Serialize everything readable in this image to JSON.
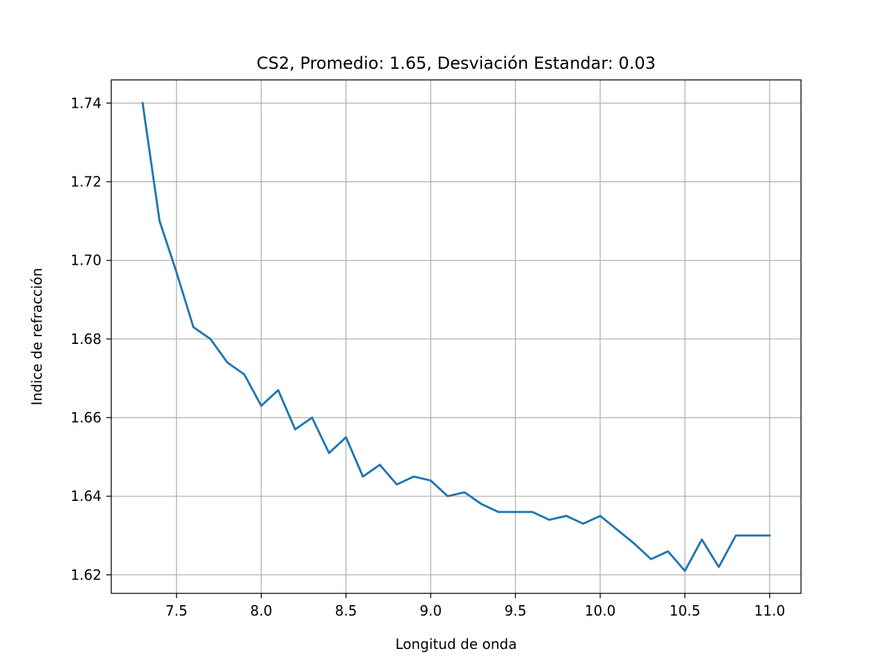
{
  "chart_data": {
    "type": "line",
    "title": "CS2, Promedio: 1.65, Desviación Estandar: 0.03",
    "xlabel": "Longitud de onda",
    "ylabel": "Indice de refracción",
    "xlim": [
      7.115,
      11.185
    ],
    "ylim": [
      1.6153,
      1.7459
    ],
    "xticks": [
      7.5,
      8.0,
      8.5,
      9.0,
      9.5,
      10.0,
      10.5,
      11.0
    ],
    "xtick_labels": [
      "7.5",
      "8.0",
      "8.5",
      "9.0",
      "9.5",
      "10.0",
      "10.5",
      "11.0"
    ],
    "yticks": [
      1.62,
      1.64,
      1.66,
      1.68,
      1.7,
      1.72,
      1.74
    ],
    "ytick_labels": [
      "1.62",
      "1.64",
      "1.66",
      "1.68",
      "1.70",
      "1.72",
      "1.74"
    ],
    "grid": true,
    "series": [
      {
        "color": "#1f77b4",
        "x": [
          7.3,
          7.4,
          7.5,
          7.6,
          7.7,
          7.8,
          7.9,
          8.0,
          8.1,
          8.2,
          8.3,
          8.4,
          8.5,
          8.6,
          8.7,
          8.8,
          8.9,
          9.0,
          9.1,
          9.2,
          9.3,
          9.4,
          9.5,
          9.6,
          9.7,
          9.8,
          9.9,
          10.0,
          10.1,
          10.2,
          10.3,
          10.4,
          10.5,
          10.6,
          10.7,
          10.8,
          10.9,
          11.0
        ],
        "values": [
          1.74,
          1.71,
          1.697,
          1.683,
          1.68,
          1.674,
          1.671,
          1.663,
          1.667,
          1.657,
          1.66,
          1.651,
          1.655,
          1.645,
          1.648,
          1.643,
          1.645,
          1.644,
          1.64,
          1.641,
          1.638,
          1.636,
          1.636,
          1.636,
          1.634,
          1.635,
          1.633,
          1.635,
          1.6315,
          1.628,
          1.624,
          1.626,
          1.621,
          1.629,
          1.622,
          1.63,
          1.63,
          1.63
        ]
      }
    ]
  }
}
